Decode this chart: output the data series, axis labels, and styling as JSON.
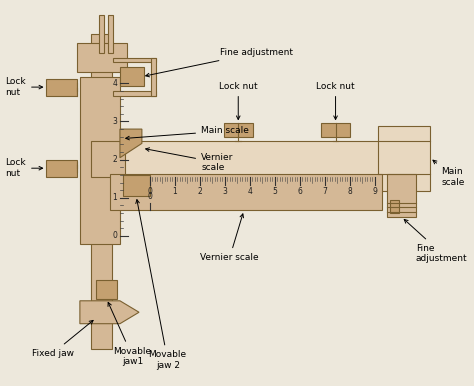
{
  "bg_color": "#ede8dc",
  "part_fill": "#d4b896",
  "part_edge": "#7a6030",
  "part_fill_dark": "#c4a070",
  "part_fill_light": "#e8d8c0",
  "scale_v_ticks": [
    0,
    1,
    2,
    3,
    4
  ],
  "scale_h_ticks": [
    0,
    1,
    2,
    3,
    4,
    5,
    6,
    7,
    8,
    9
  ],
  "fs_label": 6.5,
  "fs_tick": 5.5
}
